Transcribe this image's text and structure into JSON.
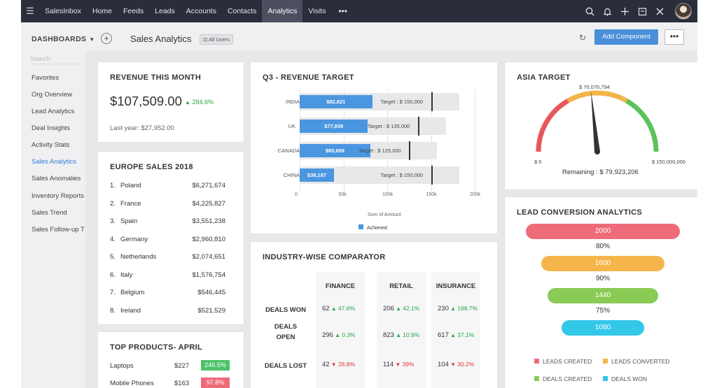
{
  "nav": {
    "brand": "SalesInbox",
    "items": [
      "Home",
      "Feeds",
      "Leads",
      "Accounts",
      "Contacts",
      "Analytics",
      "Visits"
    ],
    "active": "Analytics",
    "more": "•••"
  },
  "toolbar": {
    "dashboards_label": "DASHBOARDS",
    "page_title": "Sales Analytics",
    "users_badge": "All Users",
    "add_component": "Add Component",
    "more": "•••"
  },
  "sidebar": {
    "search_placeholder": "Search",
    "items": [
      "Favorites",
      "Org Overview",
      "Lead Analytics",
      "Deal Insights",
      "Activity Stats",
      "Sales Analytics",
      "Sales Anomalies",
      "Inventory Reports",
      "Sales Trend",
      "Sales Follow-up T"
    ],
    "active": "Sales Analytics"
  },
  "revenue": {
    "title": "REVENUE THIS MONTH",
    "amount": "$107,509.00",
    "change": "284.6%",
    "last_year": "Last year: $27,952.00"
  },
  "europe": {
    "title": "EUROPE SALES 2018",
    "rows": [
      {
        "idx": "1.",
        "country": "Poland",
        "amount": "$6,271,674"
      },
      {
        "idx": "2.",
        "country": "France",
        "amount": "$4,225,827"
      },
      {
        "idx": "3.",
        "country": "Spain",
        "amount": "$3,551,238"
      },
      {
        "idx": "4.",
        "country": "Germany",
        "amount": "$2,960,810"
      },
      {
        "idx": "5.",
        "country": "Netherlands",
        "amount": "$2,074,651"
      },
      {
        "idx": "6.",
        "country": "Italy",
        "amount": "$1,576,754"
      },
      {
        "idx": "7.",
        "country": "Belgium",
        "amount": "$546,445"
      },
      {
        "idx": "8.",
        "country": "Ireland",
        "amount": "$521,529"
      }
    ]
  },
  "top_products": {
    "title": "TOP PRODUCTS- APRIL",
    "rows": [
      {
        "name": "Laptops",
        "amount": "$227",
        "change": "246.5%",
        "color": "#4cc26a"
      },
      {
        "name": "Mobile Phones",
        "amount": "$163",
        "change": "97.8%",
        "color": "#ee6b7a"
      }
    ]
  },
  "q3": {
    "title": "Q3 - REVENUE TARGET",
    "xlabel": "Sum of Amount",
    "legend": "Achieved",
    "ticks": [
      "0",
      "50k",
      "100k",
      "150k",
      "200k"
    ],
    "rows": [
      {
        "country": "INDIA",
        "value": 82821,
        "label": "$82,821",
        "target": 150000,
        "target_label": "Target : $ 150,000"
      },
      {
        "country": "UK",
        "value": 77839,
        "label": "$77,839",
        "target": 135000,
        "target_label": "Target : $ 135,000"
      },
      {
        "country": "CANADA",
        "value": 80658,
        "label": "$80,658",
        "target": 125000,
        "target_label": "Target : $ 125,000"
      },
      {
        "country": "CHINA",
        "value": 39187,
        "label": "$39,187",
        "target": 150000,
        "target_label": "Target : $ 150,000"
      }
    ]
  },
  "industry": {
    "title": "INDUSTRY-WISE COMPARATOR",
    "columns": [
      "FINANCE",
      "RETAIL",
      "INSURANCE"
    ],
    "rows": [
      {
        "label": "DEALS WON",
        "cells": [
          {
            "value": "62",
            "pct": "47.6%",
            "dir": "up"
          },
          {
            "value": "206",
            "pct": "42.1%",
            "dir": "up"
          },
          {
            "value": "230",
            "pct": "198.7%",
            "dir": "up"
          }
        ]
      },
      {
        "label_line1": "DEALS",
        "label_line2": "OPEN",
        "cells": [
          {
            "value": "296",
            "pct": "0.3%",
            "dir": "up"
          },
          {
            "value": "823",
            "pct": "10.9%",
            "dir": "up"
          },
          {
            "value": "617",
            "pct": "37.1%",
            "dir": "up"
          }
        ]
      },
      {
        "label": "DEALS LOST",
        "cells": [
          {
            "value": "42",
            "pct": "28.8%",
            "dir": "down"
          },
          {
            "value": "114",
            "pct": "39%",
            "dir": "down"
          },
          {
            "value": "104",
            "pct": "30.2%",
            "dir": "down"
          }
        ]
      }
    ]
  },
  "asia": {
    "title": "ASIA TARGET",
    "value_label": "$ 70,076,794",
    "min_label": "$ 0",
    "max_label": "$ 150,000,000",
    "remaining": "Remaining : $ 79,923,206",
    "value": 70076794,
    "max": 150000000,
    "colors": [
      "#e8585a",
      "#f3b54a",
      "#5cc25a"
    ]
  },
  "lead": {
    "title": "LEAD CONVERSION ANALYTICS",
    "bars": [
      {
        "value": "2000",
        "color": "#ee6b7a",
        "fraction": 1.0
      },
      {
        "value": "1600",
        "color": "#f5b54a",
        "fraction": 0.8
      },
      {
        "value": "1440",
        "color": "#8acb55",
        "fraction": 0.72
      },
      {
        "value": "1080",
        "color": "#33c7e8",
        "fraction": 0.54
      }
    ],
    "rates": [
      "80%",
      "90%",
      "75%"
    ],
    "legend": [
      {
        "label": "LEADS CREATED",
        "color": "#ee6b7a"
      },
      {
        "label": "LEADS CONVERTED",
        "color": "#f5b54a"
      },
      {
        "label": "DEALS CREATED",
        "color": "#8acb55"
      },
      {
        "label": "DEALS WON",
        "color": "#33c7e8"
      }
    ]
  }
}
